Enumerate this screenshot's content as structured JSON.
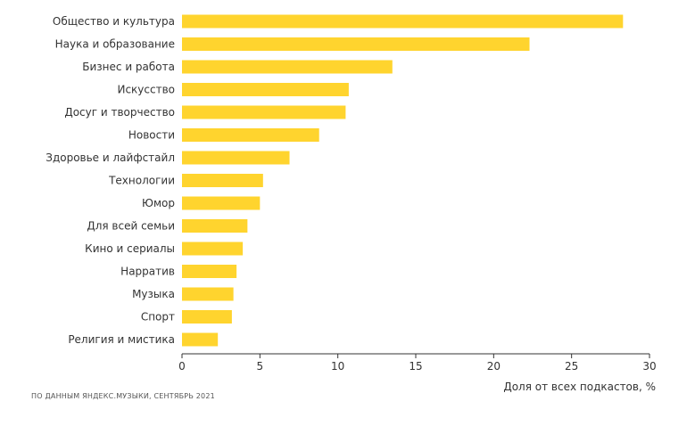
{
  "chart_data": {
    "type": "bar",
    "orientation": "horizontal",
    "categories": [
      "Общество и культура",
      "Наука и образование",
      "Бизнес и работа",
      "Искусство",
      "Досуг и творчество",
      "Новости",
      "Здоровье и лайфстайл",
      "Технологии",
      "Юмор",
      "Для всей семьи",
      "Кино и сериалы",
      "Нарратив",
      "Музыка",
      "Спорт",
      "Религия и мистика"
    ],
    "values": [
      28.3,
      22.3,
      13.5,
      10.7,
      10.5,
      8.8,
      6.9,
      5.2,
      5.0,
      4.2,
      3.9,
      3.5,
      3.3,
      3.2,
      2.3
    ],
    "xlabel": "Доля от всех подкастов, %",
    "ylabel": "",
    "xlim": [
      0,
      30
    ],
    "xticks": [
      0,
      5,
      10,
      15,
      20,
      25,
      30
    ],
    "xtick_labels": [
      "0",
      "5",
      "10",
      "15",
      "20",
      "25",
      "30"
    ],
    "grid": false,
    "bar_color": "#FFD42E"
  },
  "source_note": "ПО ДАННЫМ ЯНДЕКС.МУЗЫКИ, СЕНТЯБРЬ 2021"
}
